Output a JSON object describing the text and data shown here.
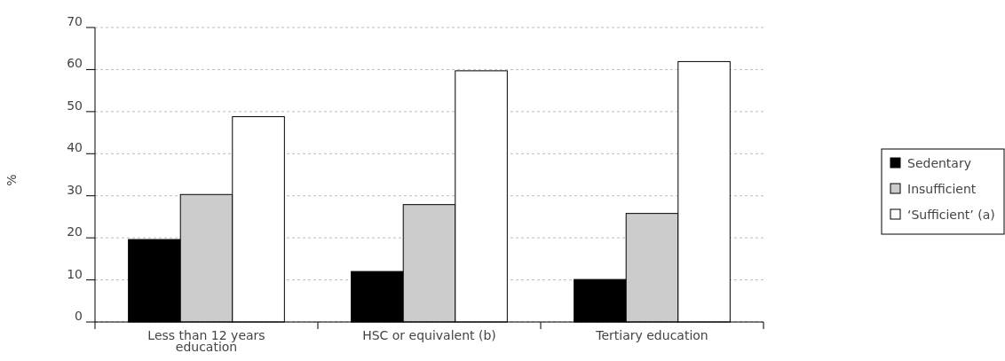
{
  "chart_data": {
    "type": "bar",
    "ylabel": "%",
    "categories": [
      "Less than 12 years education",
      "HSC or equivalent (b)",
      "Tertiary education"
    ],
    "series": [
      {
        "name": "Sedentary",
        "color": "#000000",
        "values": [
          19.6,
          12,
          10.1
        ]
      },
      {
        "name": "Insufficient",
        "color": "#cccccc",
        "values": [
          30.3,
          27.9,
          25.8
        ]
      },
      {
        "name": "‘Sufficient’ (a)",
        "color": "#ffffff",
        "values": [
          48.8,
          59.7,
          61.9
        ]
      }
    ],
    "ylim": [
      0,
      70
    ],
    "yticks": [
      0,
      10,
      20,
      30,
      40,
      50,
      60,
      70
    ],
    "grid": "y",
    "legend": "right"
  }
}
